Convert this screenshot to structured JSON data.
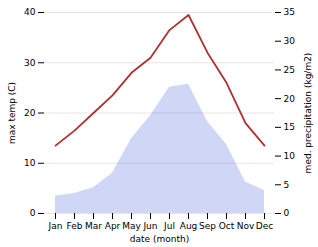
{
  "chart_data": {
    "type": "line",
    "categories": [
      "Jan",
      "Feb",
      "Mar",
      "Apr",
      "May",
      "Jun",
      "Jul",
      "Aug",
      "Sep",
      "Oct",
      "Nov",
      "Dec"
    ],
    "series": [
      {
        "type": "area",
        "axis": "y2",
        "color": "#c8d0f5",
        "values": [
          3.0,
          3.5,
          4.5,
          7.0,
          13.0,
          17.0,
          22.0,
          22.5,
          16.0,
          12.0,
          5.5,
          4.0
        ]
      },
      {
        "type": "line",
        "color": "#b03030",
        "values": [
          13.5,
          16.5,
          20.0,
          23.5,
          28.0,
          31.0,
          36.5,
          39.5,
          32.0,
          26.0,
          18.0,
          13.5
        ]
      }
    ],
    "xlabel": "date (month)",
    "ylabel": "max temp (C)",
    "y2label": "med. precipitation (kg/m2)",
    "ylim": [
      0,
      40
    ],
    "yticks": [
      0,
      10,
      20,
      30,
      40
    ],
    "y2lim": [
      0,
      35
    ],
    "y2ticks": [
      0,
      5,
      10,
      15,
      20,
      25,
      30,
      35
    ],
    "grid": true
  }
}
